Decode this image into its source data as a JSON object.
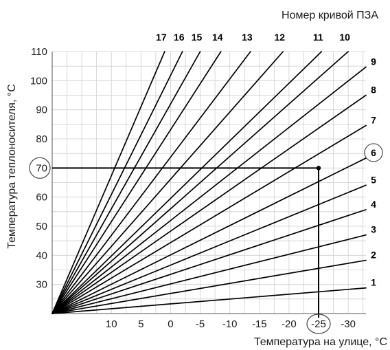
{
  "chart_data": {
    "type": "line",
    "title": "Номер кривой ПЗА",
    "xlabel": "Температура на улице, °C",
    "ylabel": "Температура теплоносителя, °C",
    "x_tick_labels": [
      "10",
      "5",
      "0",
      "-5",
      "-10",
      "-15",
      "-20",
      "-25",
      "-30"
    ],
    "x_ticks": [
      10,
      5,
      0,
      -5,
      -10,
      -15,
      -20,
      -25,
      -30
    ],
    "y_tick_labels": [
      "30",
      "40",
      "50",
      "60",
      "70",
      "80",
      "90",
      "100",
      "110"
    ],
    "y_ticks": [
      30,
      40,
      50,
      60,
      70,
      80,
      90,
      100,
      110
    ],
    "xlim": [
      20,
      -33
    ],
    "ylim": [
      20,
      110
    ],
    "grid": true,
    "origin": {
      "x": 20,
      "y": 20
    },
    "series": [
      {
        "name": "1",
        "x": [
          20,
          -33
        ],
        "y": [
          20,
          28.8
        ]
      },
      {
        "name": "2",
        "x": [
          20,
          -33
        ],
        "y": [
          20,
          38.3
        ]
      },
      {
        "name": "3",
        "x": [
          20,
          -33
        ],
        "y": [
          20,
          47.0
        ]
      },
      {
        "name": "4",
        "x": [
          20,
          -33
        ],
        "y": [
          20,
          55.7
        ]
      },
      {
        "name": "5",
        "x": [
          20,
          -33
        ],
        "y": [
          20,
          64.1
        ]
      },
      {
        "name": "6",
        "x": [
          20,
          -33
        ],
        "y": [
          20,
          73.4
        ]
      },
      {
        "name": "7",
        "x": [
          20,
          -33
        ],
        "y": [
          20,
          84.6
        ]
      },
      {
        "name": "8",
        "x": [
          20,
          -33
        ],
        "y": [
          20,
          95.0
        ]
      },
      {
        "name": "9",
        "x": [
          20,
          -33
        ],
        "y": [
          20,
          104.7
        ]
      },
      {
        "name": "10",
        "x": [
          20,
          -30
        ],
        "y": [
          20,
          110
        ]
      },
      {
        "name": "11",
        "x": [
          20,
          -25.5
        ],
        "y": [
          20,
          110
        ]
      },
      {
        "name": "12",
        "x": [
          20,
          -19
        ],
        "y": [
          20,
          110
        ]
      },
      {
        "name": "13",
        "x": [
          20,
          -13.5
        ],
        "y": [
          20,
          110
        ]
      },
      {
        "name": "14",
        "x": [
          20,
          -8.5
        ],
        "y": [
          20,
          110
        ]
      },
      {
        "name": "15",
        "x": [
          20,
          -5
        ],
        "y": [
          20,
          110
        ]
      },
      {
        "name": "16",
        "x": [
          20,
          -2
        ],
        "y": [
          20,
          110
        ]
      },
      {
        "name": "17",
        "x": [
          20,
          1
        ],
        "y": [
          20,
          110
        ]
      }
    ],
    "annotations": {
      "highlight_point": {
        "x": -25,
        "y": 70
      },
      "circled_x_label": "-25",
      "circled_y_label": "70",
      "circled_curve": "6"
    }
  }
}
